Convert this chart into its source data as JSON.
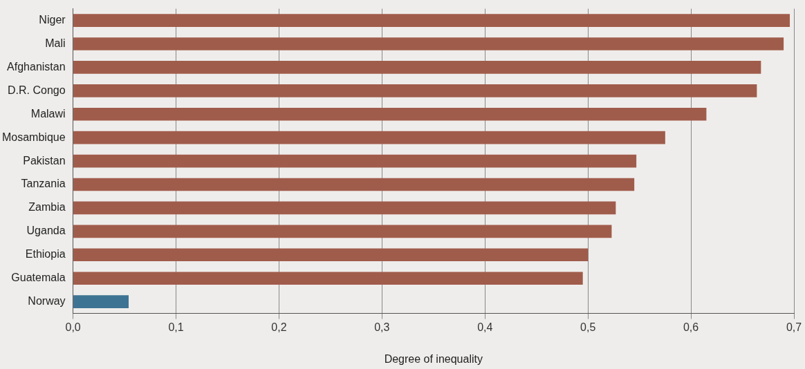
{
  "chart_data": {
    "type": "bar",
    "orientation": "horizontal",
    "xlabel": "Degree of inequality",
    "categories": [
      "Niger",
      "Mali",
      "Afghanistan",
      "D.R. Congo",
      "Malawi",
      "Mosambique",
      "Pakistan",
      "Tanzania",
      "Zambia",
      "Uganda",
      "Ethiopia",
      "Guatemala",
      "Norway"
    ],
    "values": [
      0.696,
      0.69,
      0.668,
      0.664,
      0.615,
      0.575,
      0.547,
      0.545,
      0.527,
      0.523,
      0.5,
      0.495,
      0.054
    ],
    "colors": [
      "#a05c4b",
      "#a05c4b",
      "#a05c4b",
      "#a05c4b",
      "#a05c4b",
      "#a05c4b",
      "#a05c4b",
      "#a05c4b",
      "#a05c4b",
      "#a05c4b",
      "#a05c4b",
      "#a05c4b",
      "#3e7393"
    ],
    "xlim": [
      0,
      0.7
    ],
    "xticks": [
      {
        "value": 0,
        "label": "0,0"
      },
      {
        "value": 0.1,
        "label": "0,1"
      },
      {
        "value": 0.2,
        "label": "0,2"
      },
      {
        "value": 0.3,
        "label": "0,3"
      },
      {
        "value": 0.4,
        "label": "0,4"
      },
      {
        "value": 0.5,
        "label": "0,5"
      },
      {
        "value": 0.6,
        "label": "0,6"
      },
      {
        "value": 0.7,
        "label": "0,7"
      }
    ],
    "grid": "x",
    "legend": false
  }
}
